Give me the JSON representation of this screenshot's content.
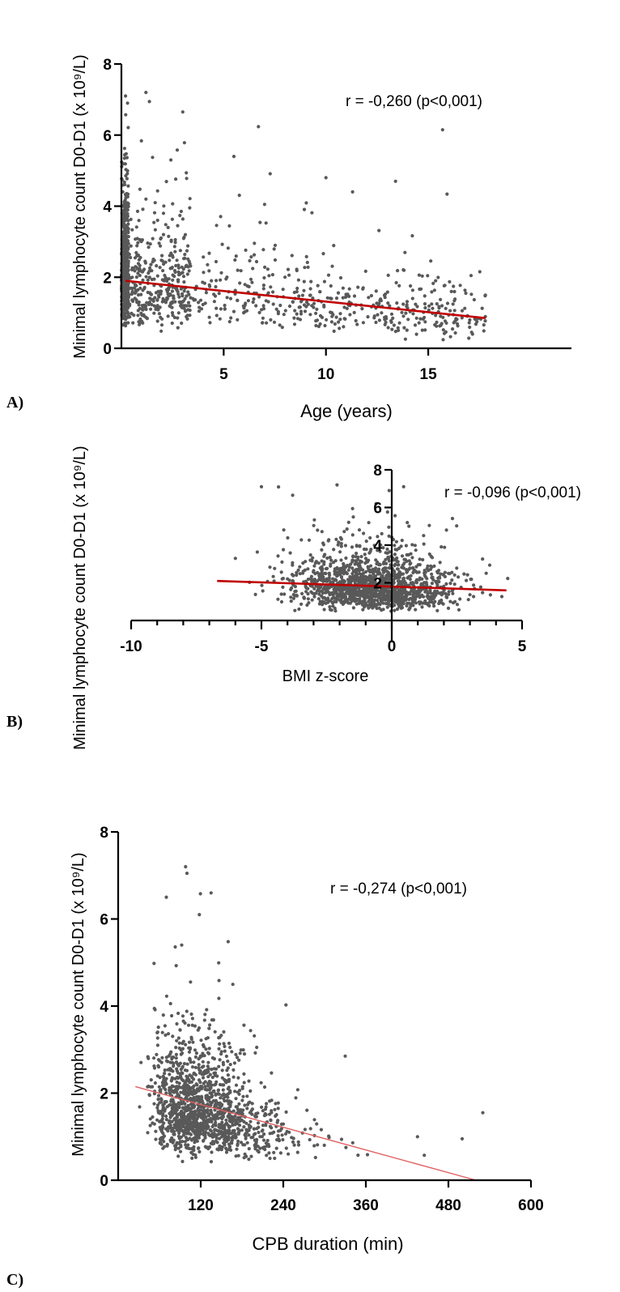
{
  "panels": [
    {
      "letter": "A)"
    },
    {
      "letter": "B)"
    },
    {
      "letter": "C)"
    }
  ],
  "chart_data": [
    {
      "type": "scatter",
      "xlabel": "Age (years)",
      "ylabel": "Minimal lymphocyte count D0-D1 (x 10⁹/L)",
      "annotation": "r = -0,260 (p<0,001)",
      "xlim": [
        0,
        22
      ],
      "ylim": [
        0,
        8
      ],
      "xticks": [
        "5",
        "10",
        "15"
      ],
      "xtick_values": [
        5,
        10,
        15
      ],
      "yticks": [
        "0",
        "2",
        "4",
        "6",
        "8"
      ],
      "ytick_values": [
        0,
        2,
        4,
        6,
        8
      ],
      "regression": {
        "x": [
          0.2,
          17.8
        ],
        "y": [
          1.9,
          0.85
        ],
        "color": "#c00000"
      },
      "points_summary": {
        "n": 1400,
        "x_range": [
          0,
          18
        ],
        "y_range": [
          0.1,
          7.2
        ]
      },
      "notable_points": [
        {
          "x": 1.2,
          "y": 7.2
        },
        {
          "x": 3,
          "y": 6.65
        },
        {
          "x": 15.7,
          "y": 6.15
        },
        {
          "x": 0.3,
          "y": 6.9
        },
        {
          "x": 5.5,
          "y": 5.4
        },
        {
          "x": 10,
          "y": 4.8
        },
        {
          "x": 13.4,
          "y": 4.7
        },
        {
          "x": 11.3,
          "y": 4.4
        },
        {
          "x": 7,
          "y": 4.05
        }
      ]
    },
    {
      "type": "scatter",
      "xlabel": "BMI z-score",
      "ylabel": "Minimal lymphocyte count D0-D1 (x 10⁹/L)",
      "annotation": "r = -0,096 (p<0,001)",
      "xlim": [
        -10,
        5
      ],
      "ylim": [
        0,
        8
      ],
      "xticks": [
        "-10",
        "-5",
        "0",
        "5"
      ],
      "xtick_values": [
        -10,
        -5,
        0,
        5
      ],
      "yticks": [
        "2",
        "4",
        "6",
        "8"
      ],
      "ytick_values": [
        2,
        4,
        6,
        8
      ],
      "regression": {
        "x": [
          -6.7,
          4.4
        ],
        "y": [
          2.1,
          1.6
        ],
        "color": "#c00000"
      },
      "points_summary": {
        "n": 1400,
        "x_range": [
          -6.7,
          4.5
        ],
        "y_range": [
          0.1,
          7.2
        ]
      },
      "notable_points": [
        {
          "x": -2.1,
          "y": 7.2
        },
        {
          "x": -3.8,
          "y": 6.65
        },
        {
          "x": -0.1,
          "y": 6.9
        },
        {
          "x": -0.6,
          "y": 6.2
        },
        {
          "x": 2.1,
          "y": 4.8
        },
        {
          "x": -6.0,
          "y": 3.3
        }
      ]
    },
    {
      "type": "scatter",
      "xlabel": "CPB duration (min)",
      "ylabel": "Minimal lymphocyte count D0-D1 (x 10⁹/L)",
      "annotation": "r = -0,274 (p<0,001)",
      "xlim": [
        0,
        600
      ],
      "ylim": [
        0,
        8
      ],
      "xticks": [
        "120",
        "240",
        "360",
        "480",
        "600"
      ],
      "xtick_values": [
        120,
        240,
        360,
        480,
        600
      ],
      "yticks": [
        "0",
        "2",
        "4",
        "6",
        "8"
      ],
      "ytick_values": [
        0,
        2,
        4,
        6,
        8
      ],
      "regression": {
        "x": [
          25,
          520
        ],
        "y": [
          2.15,
          0.0
        ],
        "color": "#e06060"
      },
      "points_summary": {
        "n": 1400,
        "x_range": [
          20,
          535
        ],
        "y_range": [
          0.1,
          7.2
        ]
      },
      "notable_points": [
        {
          "x": 98,
          "y": 7.2
        },
        {
          "x": 100,
          "y": 7.05
        },
        {
          "x": 135,
          "y": 6.6
        },
        {
          "x": 70,
          "y": 6.5
        },
        {
          "x": 118,
          "y": 6.1
        },
        {
          "x": 330,
          "y": 2.85
        },
        {
          "x": 530,
          "y": 1.55
        },
        {
          "x": 500,
          "y": 0.95
        },
        {
          "x": 435,
          "y": 1.0
        }
      ]
    }
  ]
}
